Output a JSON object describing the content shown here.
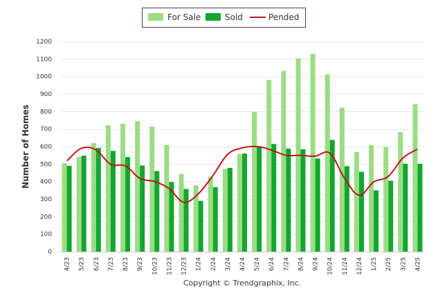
{
  "chart_data": {
    "type": "bar",
    "ylabel": "Number of Homes",
    "ylim": [
      0,
      1200
    ],
    "yticks": [
      0,
      100,
      200,
      300,
      400,
      500,
      600,
      700,
      800,
      900,
      1000,
      1100,
      1200
    ],
    "grid": true,
    "legend_position": "top-center",
    "categories": [
      "4/23",
      "5/23",
      "6/23",
      "7/23",
      "8/23",
      "9/23",
      "10/23",
      "11/23",
      "12/23",
      "1/24",
      "2/24",
      "3/24",
      "4/24",
      "5/24",
      "6/24",
      "7/24",
      "8/24",
      "9/24",
      "10/24",
      "11/24",
      "12/24",
      "1/25",
      "2/25",
      "3/25",
      "4/25"
    ],
    "series": [
      {
        "name": "For Sale",
        "kind": "bar",
        "color": "#9bdc84",
        "values": [
          505,
          540,
          620,
          722,
          730,
          745,
          715,
          608,
          443,
          378,
          428,
          472,
          558,
          798,
          980,
          1032,
          1103,
          1130,
          1012,
          822,
          568,
          608,
          598,
          682,
          843
        ]
      },
      {
        "name": "Sold",
        "kind": "bar",
        "color": "#11a72e",
        "values": [
          490,
          548,
          592,
          575,
          540,
          492,
          460,
          398,
          358,
          290,
          368,
          478,
          560,
          602,
          615,
          588,
          585,
          532,
          638,
          488,
          456,
          350,
          405,
          502,
          502
        ]
      },
      {
        "name": "Pended",
        "kind": "line",
        "color": "#c0131a",
        "values": [
          518,
          590,
          580,
          498,
          490,
          418,
          400,
          360,
          282,
          330,
          435,
          555,
          592,
          600,
          580,
          550,
          550,
          545,
          562,
          420,
          322,
          398,
          430,
          535,
          585
        ]
      }
    ],
    "credit": "Copyright © Trendgraphix, Inc."
  }
}
